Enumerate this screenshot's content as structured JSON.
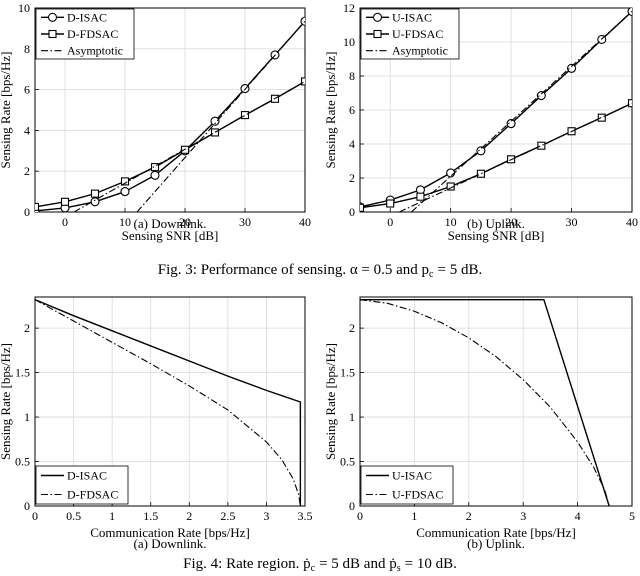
{
  "figure3": {
    "caption": "Fig. 3: Performance of sensing. α = 0.5 and p",
    "caption_sub": "c",
    "caption_tail": "= 5 dB."
  },
  "figure4": {
    "caption": "Fig. 4: Rate region. ṗ",
    "caption_sub1": "c",
    "caption_mid": "= 5 dB and ṗ",
    "caption_sub2": "s",
    "caption_tail": "= 10 dB."
  },
  "chart_data": [
    {
      "type": "line",
      "caption": "(a)  Downlink.",
      "xlabel": "Sensing SNR [dB]",
      "ylabel": "Sensing Rate [bps/Hz]",
      "xlim": [
        -5,
        40
      ],
      "ylim": [
        0,
        10
      ],
      "xticks": [
        0,
        10,
        20,
        30,
        40
      ],
      "yticks": [
        0,
        2,
        4,
        6,
        8,
        10
      ],
      "grid": true,
      "legend_position": "top-left",
      "series": [
        {
          "name": "D-ISAC",
          "marker": "circle",
          "style": "solid",
          "x": [
            -5,
            0,
            5,
            10,
            15,
            20,
            25,
            30,
            35,
            40
          ],
          "y": [
            0.05,
            0.2,
            0.5,
            1.0,
            1.8,
            3.0,
            4.45,
            6.05,
            7.7,
            9.35
          ]
        },
        {
          "name": "D-FDSAC",
          "marker": "square",
          "style": "solid",
          "x": [
            -5,
            0,
            5,
            10,
            15,
            20,
            25,
            30,
            35,
            40
          ],
          "y": [
            0.25,
            0.5,
            0.9,
            1.5,
            2.2,
            3.05,
            3.9,
            4.75,
            5.55,
            6.4
          ]
        },
        {
          "name": "Asymptotic",
          "marker": "none",
          "style": "dashdot",
          "segments": [
            {
              "x": [
                1.5,
                40
              ],
              "y": [
                0,
                6.4
              ]
            },
            {
              "x": [
                12,
                40
              ],
              "y": [
                0,
                9.35
              ]
            }
          ]
        }
      ]
    },
    {
      "type": "line",
      "caption": "(b)  Uplink.",
      "xlabel": "Sensing SNR [dB]",
      "ylabel": "Sensing Rate [bps/Hz]",
      "xlim": [
        -5,
        40
      ],
      "ylim": [
        0,
        12
      ],
      "xticks": [
        0,
        10,
        20,
        30,
        40
      ],
      "yticks": [
        0,
        2,
        4,
        6,
        8,
        10,
        12
      ],
      "grid": true,
      "legend_position": "top-left",
      "series": [
        {
          "name": "U-ISAC",
          "marker": "circle",
          "style": "solid",
          "x": [
            -5,
            0,
            5,
            10,
            15,
            20,
            25,
            30,
            35,
            40
          ],
          "y": [
            0.3,
            0.7,
            1.3,
            2.3,
            3.6,
            5.2,
            6.85,
            8.45,
            10.15,
            11.8
          ]
        },
        {
          "name": "U-FDSAC",
          "marker": "square",
          "style": "solid",
          "x": [
            -5,
            0,
            5,
            10,
            15,
            20,
            25,
            30,
            35,
            40
          ],
          "y": [
            0.25,
            0.5,
            0.9,
            1.5,
            2.25,
            3.1,
            3.9,
            4.75,
            5.55,
            6.4
          ]
        },
        {
          "name": "Asymptotic",
          "marker": "none",
          "style": "dashdot",
          "segments": [
            {
              "x": [
                1.5,
                40
              ],
              "y": [
                0,
                6.4
              ]
            },
            {
              "x": [
                3.5,
                40
              ],
              "y": [
                0,
                11.8
              ]
            }
          ]
        }
      ]
    },
    {
      "type": "line",
      "caption": "(a)  Downlink.",
      "xlabel": "Communication Rate [bps/Hz]",
      "ylabel": "Sensing Rate [bps/Hz]",
      "xlim": [
        0,
        3.5
      ],
      "ylim": [
        0,
        2.35
      ],
      "xticks": [
        0,
        0.5,
        1,
        1.5,
        2,
        2.5,
        3,
        3.5
      ],
      "xtick_labels": [
        "0",
        "0.5",
        "1",
        "1.5",
        "2",
        "2.5",
        "3",
        "3.5"
      ],
      "yticks": [
        0,
        0.5,
        1,
        1.5,
        2
      ],
      "grid": true,
      "legend_position": "bottom-left",
      "series": [
        {
          "name": "D-ISAC",
          "marker": "none",
          "style": "solid",
          "x": [
            0,
            0.5,
            1.0,
            1.5,
            2.0,
            2.5,
            3.0,
            3.44,
            3.44
          ],
          "y": [
            2.32,
            2.14,
            1.97,
            1.8,
            1.63,
            1.46,
            1.3,
            1.17,
            0
          ]
        },
        {
          "name": "D-FDSAC",
          "marker": "none",
          "style": "dashdot",
          "x": [
            0,
            0.5,
            1.0,
            1.5,
            2.0,
            2.5,
            3.0,
            3.2,
            3.35,
            3.42,
            3.44
          ],
          "y": [
            2.32,
            2.08,
            1.84,
            1.6,
            1.35,
            1.08,
            0.72,
            0.52,
            0.3,
            0.12,
            0
          ]
        }
      ]
    },
    {
      "type": "line",
      "caption": "(b)  Uplink.",
      "xlabel": "Communication Rate [bps/Hz]",
      "ylabel": "Sensing Rate [bps/Hz]",
      "xlim": [
        0,
        5
      ],
      "ylim": [
        0,
        2.35
      ],
      "xticks": [
        0,
        1,
        2,
        3,
        4,
        5
      ],
      "xtick_labels": [
        "0",
        "1",
        "2",
        "3",
        "4",
        "5"
      ],
      "yticks": [
        0,
        0.5,
        1,
        1.5,
        2
      ],
      "grid": true,
      "legend_position": "bottom-left",
      "series": [
        {
          "name": "U-ISAC",
          "marker": "none",
          "style": "solid",
          "x": [
            0,
            3.38,
            4.58
          ],
          "y": [
            2.32,
            2.32,
            0
          ]
        },
        {
          "name": "U-FDSAC",
          "marker": "none",
          "style": "dashdot",
          "x": [
            0,
            0.5,
            1.0,
            1.5,
            2.0,
            2.5,
            3.0,
            3.5,
            4.0,
            4.3,
            4.5,
            4.58
          ],
          "y": [
            2.32,
            2.28,
            2.19,
            2.06,
            1.89,
            1.68,
            1.42,
            1.11,
            0.72,
            0.43,
            0.18,
            0
          ]
        }
      ]
    }
  ]
}
